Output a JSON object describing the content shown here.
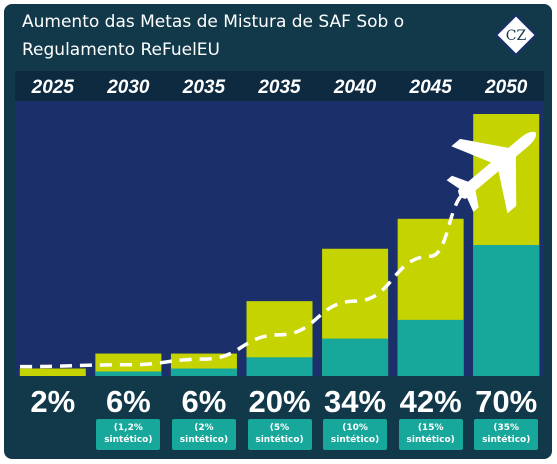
{
  "title": {
    "line1": "Aumento das Metas de Mistura de SAF Sob o",
    "line2": "Regulamento ReFuelEU"
  },
  "logo_text": "CZ",
  "colors": {
    "background": "#12394a",
    "plot_area": "#1b2f6b",
    "total_bar": "#c5d300",
    "synthetic_bar": "#17a79b",
    "year_band": "#0e2a40",
    "trend_line": "#ffffff"
  },
  "icons": {
    "airplane": "airplane-icon"
  },
  "chart_data": {
    "type": "bar",
    "title": "Aumento das Metas de Mistura de SAF Sob o Regulamento ReFuelEU",
    "categories": [
      "2025",
      "2030",
      "2035",
      "2035",
      "2040",
      "2045",
      "2050"
    ],
    "series": [
      {
        "values": [
          2,
          6,
          6,
          20,
          34,
          42,
          70
        ]
      },
      {
        "values": [
          0,
          1.2,
          2,
          5,
          10,
          15,
          35
        ]
      }
    ],
    "value_labels": [
      "2%",
      "6%",
      "6%",
      "20%",
      "34%",
      "42%",
      "70%"
    ],
    "synthetic_labels": [
      "",
      "(1,2%\nsintético)",
      "(2%\nsintético)",
      "(5%\nsintético)",
      "(10%\nsintético)",
      "(15%\nsintético)",
      "(35%\nsintético)"
    ],
    "ylim": [
      0,
      70
    ],
    "grid": false,
    "legend": "none",
    "trend": "dashed-curve"
  }
}
